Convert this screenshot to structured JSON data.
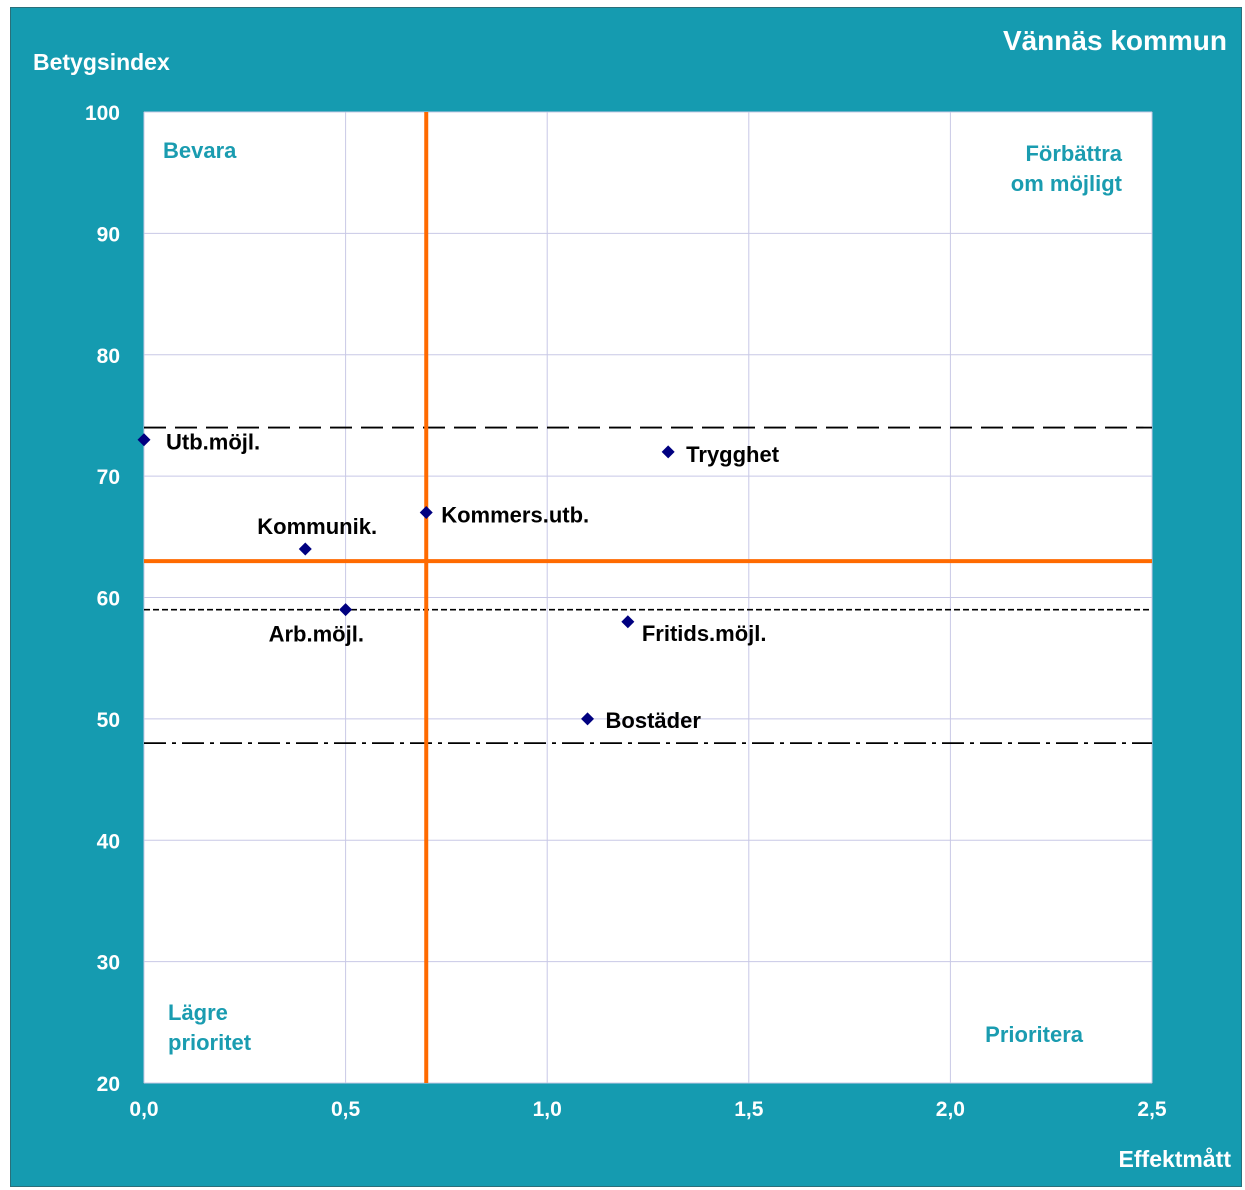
{
  "chart_data": {
    "type": "scatter",
    "title": "Vännäs kommun",
    "xlabel": "Effektmått",
    "ylabel": "Betygsindex",
    "xlim": [
      0,
      2.5
    ],
    "ylim": [
      20,
      100
    ],
    "xticks": [
      "0,0",
      "0,5",
      "1,0",
      "1,5",
      "2,0",
      "2,5"
    ],
    "xtick_values": [
      0,
      0.5,
      1.0,
      1.5,
      2.0,
      2.5
    ],
    "yticks": [
      "20",
      "30",
      "40",
      "50",
      "60",
      "70",
      "80",
      "90",
      "100"
    ],
    "ytick_values": [
      20,
      30,
      40,
      50,
      60,
      70,
      80,
      90,
      100
    ],
    "grid": true,
    "points": [
      {
        "label": "Utb.möjl.",
        "x": 0.0,
        "y": 73
      },
      {
        "label": "Trygghet",
        "x": 1.3,
        "y": 72
      },
      {
        "label": "Kommers.utb.",
        "x": 0.7,
        "y": 67
      },
      {
        "label": "Kommunik.",
        "x": 0.4,
        "y": 64
      },
      {
        "label": "Arb.möjl.",
        "x": 0.5,
        "y": 59
      },
      {
        "label": "Fritids.möjl.",
        "x": 1.2,
        "y": 58
      },
      {
        "label": "Bostäder",
        "x": 1.1,
        "y": 50
      }
    ],
    "reference_lines": {
      "vertical_orange_x": 0.7,
      "horizontal_orange_y": 63,
      "long_dash_y": 74,
      "short_dash_y": 59,
      "dash_dot_y": 48
    },
    "quadrant_labels": {
      "top_left": [
        "Bevara"
      ],
      "top_right": [
        "Förbättra",
        "om möjligt"
      ],
      "bottom_left": [
        "Lägre",
        "prioritet"
      ],
      "bottom_right": [
        "Prioritera"
      ]
    },
    "colors": {
      "frame": "#159bb0",
      "plot_bg": "#ffffff",
      "grid": "#c8c8e6",
      "marker": "#000080",
      "orange": "#ff6a00",
      "quadrant_text": "#1a9cb0"
    }
  }
}
